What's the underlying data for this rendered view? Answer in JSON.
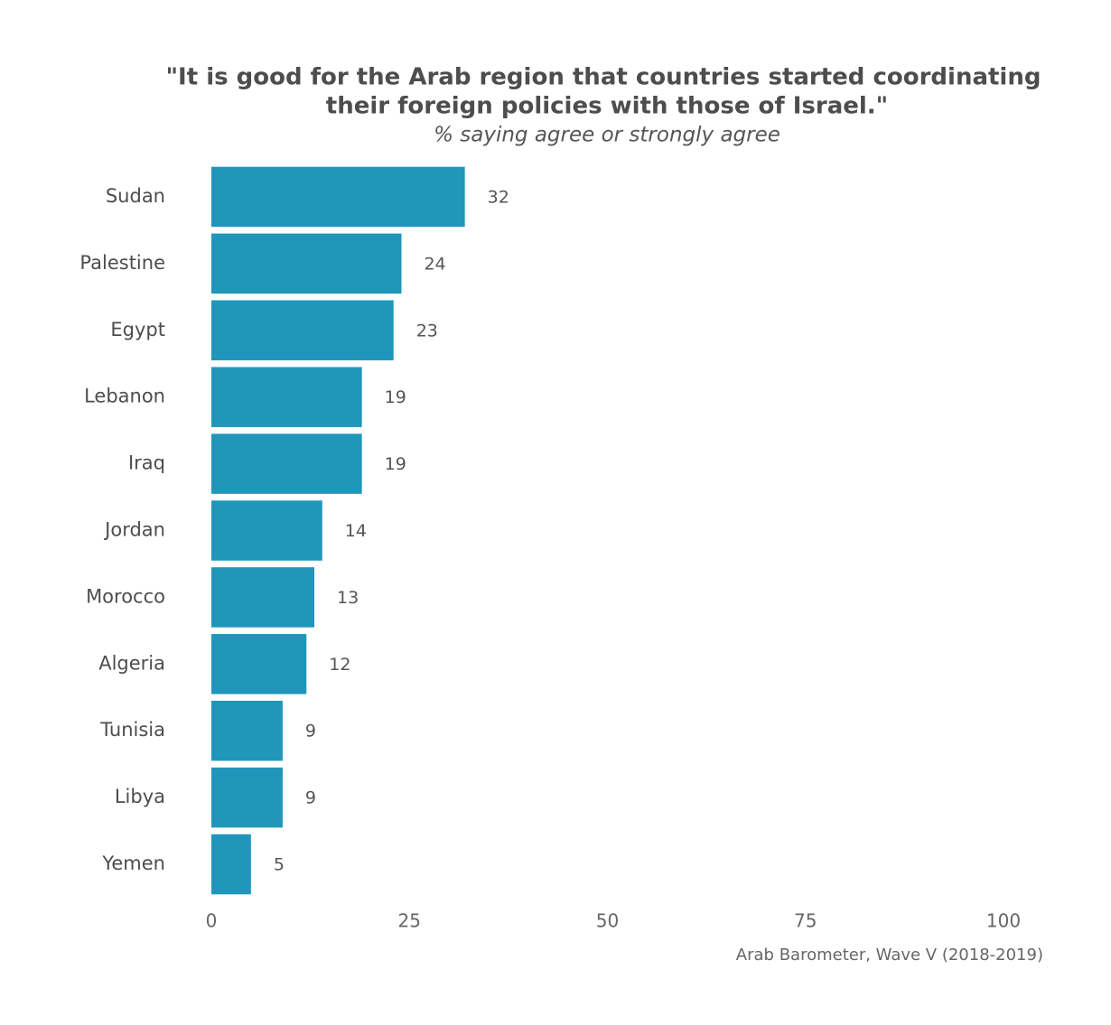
{
  "chart_data": {
    "type": "bar",
    "orientation": "horizontal",
    "title": [
      "\"It is good for the Arab region that countries started coordinating",
      "their foreign policies with those of Israel.\""
    ],
    "subtitle": "% saying agree or strongly agree",
    "caption": "Arab Barometer, Wave V (2018-2019)",
    "categories": [
      "Sudan",
      "Palestine",
      "Egypt",
      "Lebanon",
      "Iraq",
      "Jordan",
      "Morocco",
      "Algeria",
      "Tunisia",
      "Libya",
      "Yemen"
    ],
    "values": [
      32,
      24,
      23,
      19,
      19,
      14,
      13,
      12,
      9,
      9,
      5
    ],
    "color": "#2196bb",
    "xlim": [
      0,
      100
    ],
    "xticks": [
      0,
      25,
      50,
      75,
      100
    ],
    "grid": false
  }
}
